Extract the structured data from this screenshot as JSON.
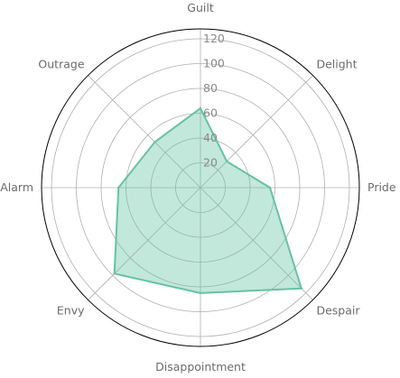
{
  "chart_data": {
    "type": "radar",
    "categories": [
      "Guilt",
      "Delight",
      "Pride",
      "Despair",
      "Disappointment",
      "Envy",
      "Alarm",
      "Outrage"
    ],
    "values": [
      64,
      30,
      56,
      115,
      85,
      98,
      66,
      52
    ],
    "r_ticks": [
      20,
      40,
      60,
      80,
      100,
      120
    ],
    "r_tick_labels": [
      "20",
      "40",
      "60",
      "80",
      "100",
      "120"
    ],
    "rlim": [
      0,
      128
    ],
    "grid": true,
    "colors": {
      "line": "#66c2a5",
      "fill": "#66c2a5",
      "grid": "#b0b0b0",
      "outer": "#000000",
      "label": "#6b6b6b"
    }
  }
}
